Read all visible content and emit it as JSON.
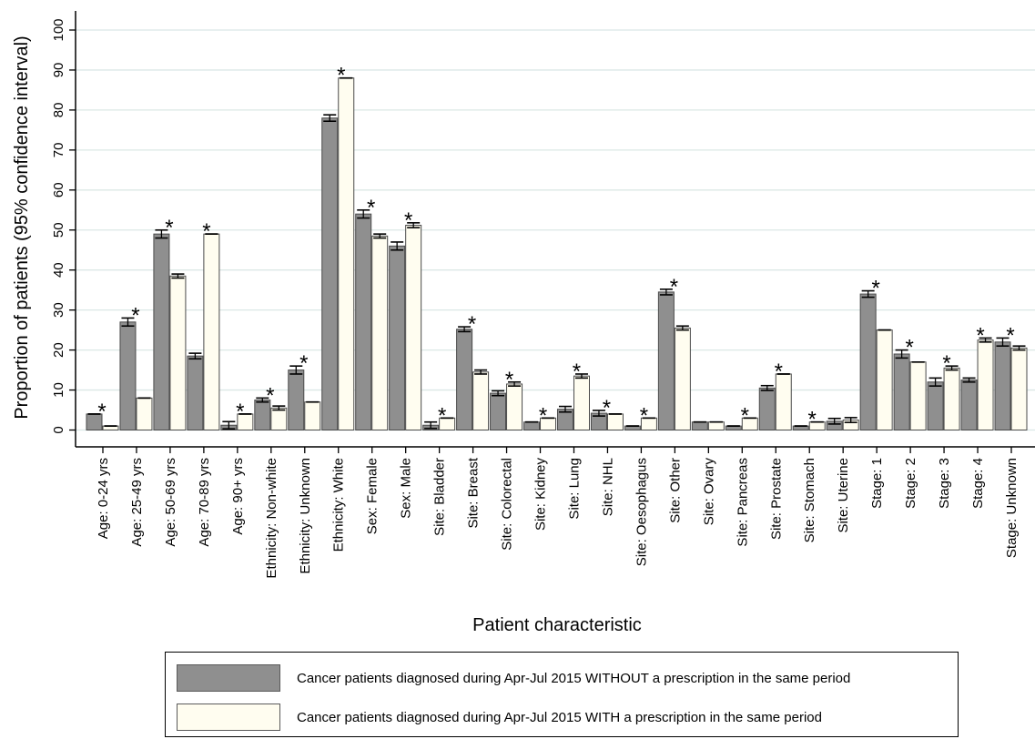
{
  "chart_data": {
    "type": "bar",
    "title": "",
    "xlabel": "Patient characteristic",
    "ylabel": "Proportion of patients (95% confidence interval)",
    "ylim": [
      0,
      100
    ],
    "yticks": [
      0,
      10,
      20,
      30,
      40,
      50,
      60,
      70,
      80,
      90,
      100
    ],
    "grid": true,
    "legend_placement": "bottom",
    "significance_marker": "*",
    "categories": [
      "Age: 0-24 yrs",
      "Age: 25-49 yrs",
      "Age: 50-69 yrs",
      "Age: 70-89 yrs",
      "Age: 90+ yrs",
      "Ethnicity: Non-white",
      "Ethnicity: Unknown",
      "Ethnicity: White",
      "Sex: Female",
      "Sex: Male",
      "Site: Bladder",
      "Site: Breast",
      "Site: Colorectal",
      "Site: Kidney",
      "Site: Lung",
      "Site: NHL",
      "Site: Oesophagus",
      "Site: Other",
      "Site: Ovary",
      "Site: Pancreas",
      "Site: Prostate",
      "Site: Stomach",
      "Site: Uterine",
      "Stage: 1",
      "Stage: 2",
      "Stage: 3",
      "Stage: 4",
      "Stage: Unknown"
    ],
    "series": [
      {
        "name": "Cancer patients diagnosed during Apr-Jul 2015 WITHOUT a prescription in the same period",
        "color": "#8f8f8f",
        "values": [
          4,
          27,
          49,
          18.5,
          1.2,
          7.5,
          15,
          78,
          54,
          46,
          1.2,
          25.2,
          9.2,
          2,
          5.2,
          4.2,
          1,
          34.5,
          2,
          1,
          10.5,
          1,
          2.2,
          34,
          19,
          12,
          12.5,
          22
        ],
        "ci_low": [
          4,
          26,
          48,
          17.8,
          0.3,
          7,
          14,
          77.2,
          53,
          45,
          0.4,
          24.6,
          8.6,
          2,
          4.5,
          3.5,
          1,
          33.8,
          2,
          1,
          9.9,
          1,
          1.5,
          33.2,
          18,
          11,
          12,
          21
        ],
        "ci_high": [
          4,
          28,
          50,
          19.2,
          2.1,
          8,
          16,
          78.8,
          55,
          47,
          2,
          25.8,
          9.8,
          2,
          5.9,
          4.9,
          1,
          35.2,
          2,
          1,
          11.1,
          1,
          2.9,
          34.8,
          20,
          13,
          13,
          23
        ]
      },
      {
        "name": "Cancer patients diagnosed during Apr-Jul 2015 WITH a prescription in the same period",
        "color": "#fffdf0",
        "values": [
          1,
          8,
          38.5,
          49,
          4,
          5.5,
          7,
          88,
          48.5,
          51.2,
          3,
          14.5,
          11.5,
          3,
          13.5,
          4,
          3,
          25.5,
          2,
          3,
          14,
          2,
          2.5,
          25,
          17,
          15.5,
          22.5,
          20.5
        ],
        "ci_low": [
          1,
          8,
          38,
          49,
          4,
          5,
          7,
          88,
          48,
          50.6,
          3,
          14,
          11,
          3,
          13,
          4,
          3,
          25,
          2,
          3,
          14,
          2,
          1.9,
          25,
          17,
          15,
          22,
          20
        ],
        "ci_high": [
          1,
          8,
          39,
          49,
          4,
          6,
          7,
          88,
          49,
          51.8,
          3,
          15,
          12,
          3,
          14,
          4,
          3,
          26,
          2,
          3,
          14,
          2,
          3.1,
          25,
          17,
          16,
          23,
          21
        ],
        "significant": [
          true,
          true,
          true,
          true,
          true,
          true,
          true,
          true,
          true,
          true,
          true,
          true,
          true,
          true,
          true,
          true,
          true,
          true,
          false,
          true,
          true,
          true,
          false,
          true,
          true,
          true,
          true,
          true
        ]
      }
    ]
  }
}
